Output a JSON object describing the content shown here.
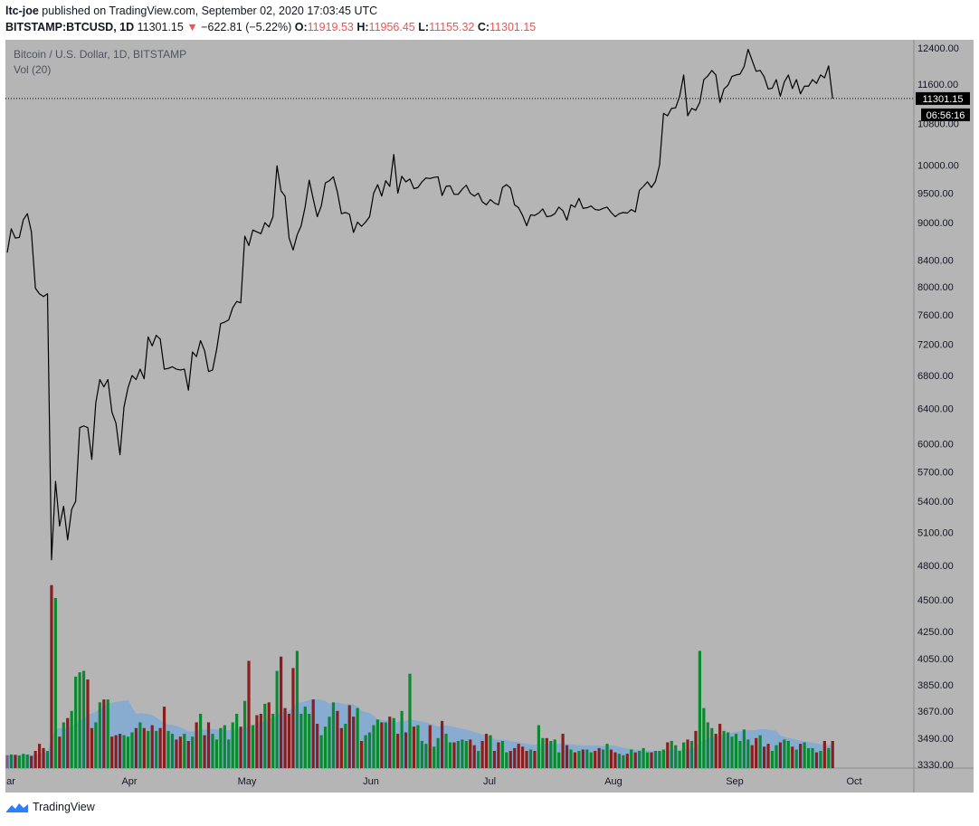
{
  "header": {
    "author": "ltc-joe",
    "published_text": "published on TradingView.com, September 02, 2020 17:03:45 UTC",
    "symbol": "BITSTAMP:BTCUSD, 1D",
    "last": "11301.15",
    "change": "−622.81 (−5.22%)",
    "o_label": "O:",
    "o": "11919.53",
    "h_label": "H:",
    "h": "11956.45",
    "l_label": "L:",
    "l": "11155.32",
    "c_label": "C:",
    "c": "11301.15"
  },
  "brand": {
    "label": "TradingView"
  },
  "colors": {
    "background": "#b5b5b5",
    "line": "#000000",
    "up": "#0a8a2e",
    "down": "#8b1d1d",
    "neutral": "#76608a",
    "vol_ma": "#7aa9d9",
    "down_arrow": "#ef5350"
  },
  "chart_data": {
    "type": "line",
    "title": "Bitcoin / U.S. Dollar, 1D, BITSTAMP",
    "indicator_label": "Vol (20)",
    "y_scale": "log",
    "ylim": [
      4560,
      12600
    ],
    "price_ticks": [
      "12400.00",
      "11600.00",
      "10800.00",
      "10000.00",
      "9500.00",
      "9000.00",
      "8400.00",
      "8000.00",
      "7600.00",
      "7200.00",
      "6800.00",
      "6400.00",
      "6000.00",
      "5700.00",
      "5400.00",
      "5100.00",
      "4800.00",
      "4500.00",
      "4250.00",
      "4050.00",
      "3850.00",
      "3670.00",
      "3490.00",
      "3330.00"
    ],
    "x_ticks": [
      "ar",
      "Apr",
      "May",
      "Jun",
      "Jul",
      "Aug",
      "Sep",
      "Oct"
    ],
    "last_price_label": "11301.15",
    "countdown_label": "06:56:16",
    "x_start": "2020-02-29",
    "series": [
      {
        "values": [
          8520,
          8900,
          8750,
          8760,
          9050,
          9150,
          8850,
          7980,
          7900,
          7860,
          7900,
          4850,
          5600,
          5160,
          5350,
          5030,
          5320,
          5400,
          6180,
          6200,
          6180,
          5830,
          6470,
          6750,
          6660,
          6750,
          6360,
          6230,
          5880,
          6420,
          6650,
          6800,
          6750,
          6880,
          6760,
          7300,
          7180,
          7320,
          7270,
          6880,
          6890,
          6910,
          6880,
          6870,
          6880,
          6620,
          7100,
          7040,
          7250,
          7120,
          6850,
          6870,
          7130,
          7480,
          7500,
          7530,
          7700,
          7790,
          7770,
          8780,
          8630,
          8880,
          8850,
          8820,
          9000,
          8930,
          9100,
          9990,
          9540,
          9450,
          8750,
          8560,
          8800,
          8950,
          9270,
          9730,
          9400,
          9100,
          9280,
          9680,
          9720,
          9790,
          9520,
          9150,
          9170,
          9140,
          8840,
          9010,
          8940,
          9010,
          9100,
          9500,
          9650,
          9450,
          9720,
          9620,
          10200,
          9500,
          9800,
          9700,
          9750,
          9580,
          9600,
          9700,
          9770,
          9760,
          9780,
          9790,
          9460,
          9620,
          9630,
          9480,
          9480,
          9570,
          9640,
          9500,
          9450,
          9500,
          9350,
          9300,
          9390,
          9330,
          9300,
          9600,
          9650,
          9590,
          9300,
          9250,
          9120,
          8950,
          9130,
          9120,
          9160,
          9230,
          9100,
          9110,
          9150,
          9260,
          9200,
          9040,
          9300,
          9260,
          9410,
          9240,
          9250,
          9280,
          9220,
          9210,
          9240,
          9260,
          9170,
          9100,
          9150,
          9170,
          9160,
          9220,
          9180,
          9550,
          9620,
          9700,
          9600,
          9710,
          10000,
          11000,
          10950,
          11100,
          11110,
          11350,
          11800,
          10950,
          11100,
          11060,
          11220,
          11700,
          11780,
          11900,
          11800,
          11220,
          11500,
          11580,
          11770,
          11800,
          11820,
          11980,
          12370,
          12120,
          11880,
          11900,
          11760,
          11500,
          11520,
          11700,
          11350,
          11650,
          11800,
          11510,
          11700,
          11400,
          11560,
          11560,
          11700,
          11620,
          11800,
          11740,
          12000,
          11301
        ]
      },
      {
        "name": "Vol (20)",
        "values": [
          90,
          95,
          93,
          88,
          100,
          95,
          85,
          120,
          170,
          140,
          120,
          1280,
          1190,
          220,
          320,
          350,
          400,
          640,
          670,
          680,
          620,
          280,
          320,
          460,
          480,
          480,
          220,
          230,
          240,
          230,
          220,
          250,
          280,
          320,
          280,
          260,
          300,
          260,
          280,
          430,
          260,
          240,
          200,
          220,
          240,
          190,
          220,
          320,
          380,
          230,
          320,
          240,
          200,
          280,
          300,
          200,
          320,
          380,
          290,
          470,
          750,
          300,
          370,
          380,
          450,
          460,
          380,
          680,
          780,
          420,
          380,
          700,
          820,
          380,
          430,
          380,
          480,
          310,
          230,
          290,
          360,
          460,
          400,
          280,
          310,
          440,
          360,
          420,
          190,
          230,
          250,
          300,
          340,
          320,
          320,
          360,
          350,
          240,
          400,
          250,
          660,
          290,
          300,
          190,
          170,
          300,
          150,
          210,
          330,
          240,
          180,
          180,
          190,
          200,
          190,
          200,
          160,
          120,
          190,
          240,
          230,
          120,
          180,
          190,
          110,
          120,
          140,
          170,
          150,
          120,
          130,
          120,
          300,
          210,
          210,
          190,
          200,
          110,
          240,
          160,
          130,
          110,
          120,
          130,
          130,
          110,
          120,
          140,
          130,
          170,
          130,
          110,
          100,
          90,
          100,
          130,
          110,
          120,
          140,
          110,
          110,
          120,
          120,
          130,
          180,
          190,
          160,
          120,
          180,
          200,
          190,
          260,
          820,
          420,
          320,
          280,
          240,
          310,
          260,
          250,
          220,
          240,
          190,
          270,
          200,
          160,
          210,
          230,
          150,
          170,
          120,
          160,
          180,
          200,
          190,
          150,
          130,
          170,
          180,
          140,
          140,
          110,
          120,
          190,
          140,
          190,
          150,
          210,
          160,
          130,
          240,
          310
        ]
      }
    ]
  }
}
